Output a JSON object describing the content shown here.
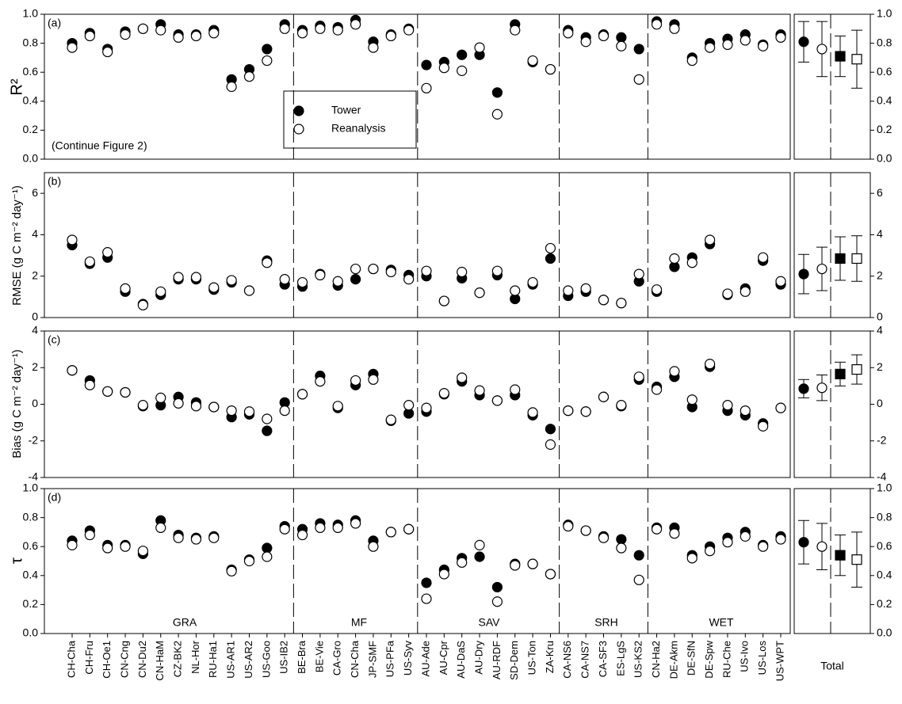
{
  "chart_data": {
    "type": "scatter",
    "annotation": "(Continue Figure 2)",
    "total_label": "Total",
    "groups": [
      "GRA",
      "MF",
      "SAV",
      "SRH",
      "WET"
    ],
    "categories": [
      "CH-Cha",
      "CH-Fru",
      "CH-Oe1",
      "CN-Cng",
      "CN-Du2",
      "CN-HaM",
      "CZ-BK2",
      "NL-Hor",
      "RU-Ha1",
      "US-AR1",
      "US-AR2",
      "US-Goo",
      "US-IB2",
      "BE-Bra",
      "BE-Vie",
      "CA-Gro",
      "CN-Cha",
      "JP-SMF",
      "US-PFa",
      "US-Syv",
      "AU-Ade",
      "AU-Cpr",
      "AU-DaS",
      "AU-Dry",
      "AU-RDF",
      "SD-Dem",
      "US-Ton",
      "ZA-Kru",
      "CA-NS6",
      "CA-NS7",
      "CA-SF3",
      "ES-LgS",
      "US-KS2",
      "CN-Ha2",
      "DE-Akm",
      "DE-SfN",
      "DE-Spw",
      "RU-Che",
      "US-Ivo",
      "US-Los",
      "US-WPT"
    ],
    "series": [
      {
        "name": "Tower",
        "color": "#000000",
        "filled": true
      },
      {
        "name": "Reanalysis",
        "color": "#000000",
        "filled": false
      }
    ],
    "total_markers": [
      "circle",
      "circle",
      "square",
      "square"
    ],
    "total_fills": [
      true,
      false,
      true,
      false
    ],
    "panels": [
      {
        "label": "(a)",
        "ylabel": "R²",
        "ylim": [
          0,
          1
        ],
        "yticks": [
          {
            "value": 0,
            "label": "0.0"
          },
          0.2,
          0.4,
          0.6,
          0.8,
          {
            "value": 1,
            "label": "1.0"
          }
        ],
        "series": [
          {
            "values": [
              0.8,
              0.87,
              0.76,
              0.88,
              0.9,
              0.93,
              0.86,
              0.86,
              0.89,
              0.55,
              0.62,
              0.76,
              0.93,
              0.89,
              0.92,
              0.91,
              0.96,
              0.81,
              0.86,
              0.9,
              0.65,
              0.67,
              0.72,
              0.72,
              0.46,
              0.93,
              0.67,
              0.62,
              0.89,
              0.84,
              0.86,
              0.84,
              0.76,
              0.95,
              0.93,
              0.7,
              0.8,
              0.83,
              0.86,
              0.79,
              0.86
            ]
          },
          {
            "values": [
              0.77,
              0.85,
              0.74,
              0.86,
              0.9,
              0.89,
              0.84,
              0.85,
              0.87,
              0.5,
              0.57,
              0.68,
              0.9,
              0.87,
              0.9,
              0.89,
              0.93,
              0.77,
              0.85,
              0.89,
              0.49,
              0.63,
              0.61,
              0.77,
              0.31,
              0.89,
              0.68,
              0.62,
              0.87,
              0.81,
              0.85,
              0.78,
              0.55,
              0.93,
              0.9,
              0.68,
              0.77,
              0.79,
              0.82,
              0.78,
              0.84
            ]
          }
        ],
        "total": {
          "values": [
            0.81,
            0.76,
            0.71,
            0.69
          ],
          "errors": [
            0.14,
            0.19,
            0.14,
            0.2
          ]
        }
      },
      {
        "label": "(b)",
        "ylabel": "RMSE (g C m⁻² day⁻¹)",
        "ylim": [
          0,
          7
        ],
        "yticks": [
          0,
          2,
          4,
          6
        ],
        "series": [
          {
            "values": [
              3.5,
              2.6,
              2.9,
              1.25,
              0.65,
              1.1,
              1.85,
              1.85,
              1.35,
              1.7,
              1.3,
              2.75,
              1.6,
              1.5,
              2.1,
              1.55,
              1.85,
              2.35,
              2.3,
              2.05,
              2.0,
              0.8,
              1.9,
              1.2,
              2.05,
              0.9,
              1.6,
              2.85,
              1.05,
              1.25,
              0.85,
              0.7,
              1.75,
              1.25,
              2.45,
              2.9,
              3.55,
              1.1,
              1.4,
              2.75,
              1.6
            ]
          },
          {
            "values": [
              3.75,
              2.7,
              3.15,
              1.4,
              0.6,
              1.25,
              1.95,
              1.95,
              1.45,
              1.8,
              1.3,
              2.65,
              1.85,
              1.7,
              2.05,
              1.75,
              2.35,
              2.35,
              2.2,
              1.85,
              2.25,
              0.8,
              2.2,
              1.2,
              2.25,
              1.3,
              1.7,
              3.35,
              1.3,
              1.4,
              0.85,
              0.7,
              2.1,
              1.35,
              2.85,
              2.65,
              3.75,
              1.15,
              1.25,
              2.9,
              1.75
            ]
          }
        ],
        "total": {
          "values": [
            2.1,
            2.35,
            2.85,
            2.85
          ],
          "errors": [
            0.95,
            1.05,
            1.05,
            1.1
          ]
        }
      },
      {
        "label": "(c)",
        "ylabel": "Bias (g C m⁻² day⁻¹)",
        "ylim": [
          -4,
          4
        ],
        "yticks": [
          -4,
          -2,
          0,
          2,
          4
        ],
        "series": [
          {
            "values": [
              1.85,
              1.3,
              0.7,
              0.65,
              -0.1,
              -0.05,
              0.4,
              0.1,
              -0.15,
              -0.7,
              -0.55,
              -1.45,
              0.1,
              0.55,
              1.55,
              -0.2,
              1.05,
              1.65,
              -0.9,
              -0.5,
              -0.4,
              0.55,
              1.25,
              0.5,
              0.2,
              0.5,
              -0.6,
              -1.35,
              -0.35,
              -0.4,
              0.4,
              -0.1,
              1.35,
              0.95,
              1.5,
              -0.15,
              2.05,
              -0.35,
              -0.6,
              -1.05,
              -0.2
            ]
          },
          {
            "values": [
              1.85,
              1.05,
              0.7,
              0.65,
              -0.05,
              0.35,
              0.05,
              -0.1,
              -0.15,
              -0.35,
              -0.4,
              -0.8,
              -0.35,
              0.55,
              1.25,
              -0.1,
              1.3,
              1.35,
              -0.85,
              -0.05,
              -0.2,
              0.6,
              1.45,
              0.75,
              0.2,
              0.8,
              -0.45,
              -2.2,
              -0.35,
              -0.4,
              0.4,
              -0.05,
              1.5,
              0.8,
              1.8,
              0.25,
              2.2,
              -0.05,
              -0.35,
              -1.2,
              -0.2
            ]
          }
        ],
        "total": {
          "values": [
            0.85,
            0.9,
            1.65,
            1.9
          ],
          "errors": [
            0.5,
            0.7,
            0.65,
            0.8
          ]
        }
      },
      {
        "label": "(d)",
        "ylabel": "τ",
        "ylim": [
          0,
          1
        ],
        "yticks": [
          {
            "value": 0,
            "label": "0.0"
          },
          0.2,
          0.4,
          0.6,
          0.8,
          {
            "value": 1,
            "label": "1.0"
          }
        ],
        "series": [
          {
            "values": [
              0.64,
              0.71,
              0.61,
              0.61,
              0.55,
              0.78,
              0.68,
              0.66,
              0.67,
              0.44,
              0.51,
              0.59,
              0.74,
              0.72,
              0.76,
              0.75,
              0.78,
              0.64,
              0.7,
              0.72,
              0.35,
              0.44,
              0.52,
              0.53,
              0.32,
              0.48,
              0.48,
              0.41,
              0.75,
              0.71,
              0.67,
              0.65,
              0.54,
              0.73,
              0.73,
              0.54,
              0.6,
              0.66,
              0.7,
              0.61,
              0.67
            ]
          },
          {
            "values": [
              0.61,
              0.68,
              0.59,
              0.6,
              0.57,
              0.73,
              0.66,
              0.65,
              0.66,
              0.43,
              0.5,
              0.53,
              0.72,
              0.68,
              0.73,
              0.73,
              0.76,
              0.6,
              0.7,
              0.72,
              0.24,
              0.41,
              0.49,
              0.61,
              0.22,
              0.47,
              0.48,
              0.41,
              0.74,
              0.71,
              0.66,
              0.59,
              0.37,
              0.72,
              0.69,
              0.52,
              0.57,
              0.63,
              0.67,
              0.6,
              0.65
            ]
          }
        ],
        "total": {
          "values": [
            0.63,
            0.6,
            0.54,
            0.51
          ],
          "errors": [
            0.15,
            0.16,
            0.14,
            0.19
          ]
        }
      }
    ]
  }
}
